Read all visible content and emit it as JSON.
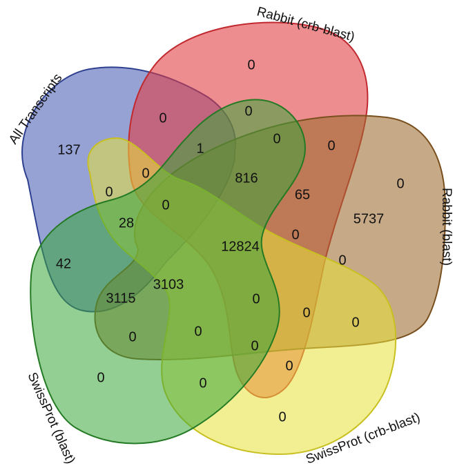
{
  "sets": [
    {
      "key": "all_transcripts",
      "label": "All Transcripts",
      "fill": "#4a5fb5",
      "stroke": "#2e3f8f"
    },
    {
      "key": "rabbit_crb",
      "label": "Rabbit (crb-blast)",
      "fill": "#e03a3f",
      "stroke": "#c0282e"
    },
    {
      "key": "rabbit_blast",
      "label": "Rabbit (blast)",
      "fill": "#9c6a2e",
      "stroke": "#7a4f1e"
    },
    {
      "key": "swissprot_crb",
      "label": "SwissProt (crb-blast)",
      "fill": "#e7e23a",
      "stroke": "#c8c020"
    },
    {
      "key": "swissprot_blast",
      "label": "SwissProt (blast)",
      "fill": "#3aa53a",
      "stroke": "#237a23"
    }
  ],
  "regions": [
    {
      "id": "r01",
      "value": "137"
    },
    {
      "id": "r02",
      "value": "0"
    },
    {
      "id": "r03",
      "value": "0"
    },
    {
      "id": "r04",
      "value": "0"
    },
    {
      "id": "r05",
      "value": "0"
    },
    {
      "id": "r06",
      "value": "1"
    },
    {
      "id": "r07",
      "value": "0"
    },
    {
      "id": "r08",
      "value": "0"
    },
    {
      "id": "r09",
      "value": "0"
    },
    {
      "id": "r10",
      "value": "816"
    },
    {
      "id": "r11",
      "value": "0"
    },
    {
      "id": "r12",
      "value": "65"
    },
    {
      "id": "r13",
      "value": "0"
    },
    {
      "id": "r14",
      "value": "5737"
    },
    {
      "id": "r15",
      "value": "28"
    },
    {
      "id": "r16",
      "value": "12824"
    },
    {
      "id": "r17",
      "value": "0"
    },
    {
      "id": "r18",
      "value": "42"
    },
    {
      "id": "r19",
      "value": "0"
    },
    {
      "id": "r20",
      "value": "3115"
    },
    {
      "id": "r21",
      "value": "3103"
    },
    {
      "id": "r22",
      "value": "0"
    },
    {
      "id": "r23",
      "value": "0"
    },
    {
      "id": "r24",
      "value": "0"
    },
    {
      "id": "r25",
      "value": "0"
    },
    {
      "id": "r26",
      "value": "0"
    },
    {
      "id": "r27",
      "value": "0"
    },
    {
      "id": "r28",
      "value": "0"
    },
    {
      "id": "r29",
      "value": "0"
    },
    {
      "id": "r30",
      "value": "0"
    },
    {
      "id": "r31",
      "value": "0"
    }
  ]
}
